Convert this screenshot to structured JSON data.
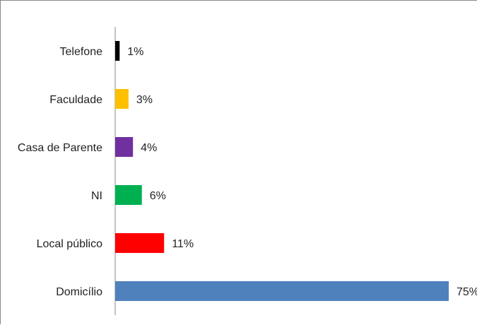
{
  "chart_data": {
    "type": "bar",
    "orientation": "horizontal",
    "categories": [
      "Telefone",
      "Faculdade",
      "Casa de Parente",
      "NI",
      "Local público",
      "Domicílio"
    ],
    "values": [
      1,
      3,
      4,
      6,
      11,
      75
    ],
    "value_labels": [
      "1%",
      "3%",
      "4%",
      "6%",
      "11%",
      "75%"
    ],
    "colors": [
      "#000000",
      "#FFC000",
      "#7030A0",
      "#00B050",
      "#FF0000",
      "#4F81BD"
    ],
    "unit": "%",
    "title": "",
    "xlabel": "",
    "ylabel": "",
    "xlim": [
      0,
      75
    ],
    "grid": false,
    "legend": "none"
  }
}
